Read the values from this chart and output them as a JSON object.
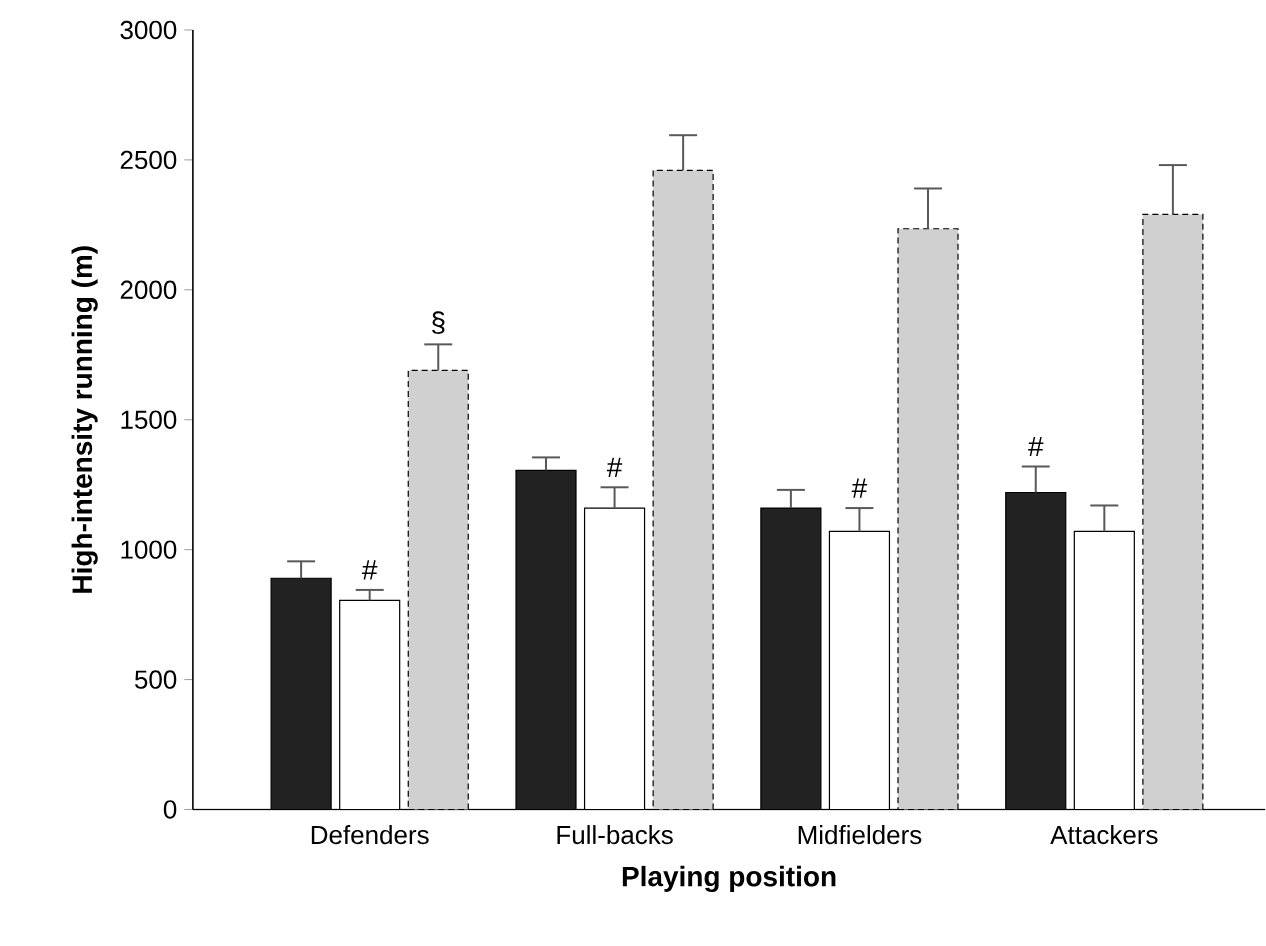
{
  "chart_data": {
    "type": "bar",
    "xlabel": "Playing position",
    "ylabel": "High-intensity running (m)",
    "categories": [
      "Defenders",
      "Full-backs",
      "Midfielders",
      "Attackers"
    ],
    "series": [
      {
        "color": "#222222",
        "values": [
          890,
          1305,
          1160,
          1220
        ],
        "errors": [
          65,
          50,
          70,
          100
        ]
      },
      {
        "color": "#ffffff",
        "values": [
          805,
          1160,
          1070,
          1070
        ],
        "errors": [
          40,
          80,
          90,
          100
        ]
      },
      {
        "color": "#d0d0d0",
        "values": [
          1690,
          2460,
          2235,
          2290
        ],
        "errors": [
          100,
          135,
          155,
          190
        ]
      }
    ],
    "ylim": [
      0,
      3000
    ],
    "yticks": [
      0,
      500,
      1000,
      1500,
      2000,
      2500,
      3000
    ],
    "grid": false,
    "annotations": [
      "#",
      "§",
      "#",
      "#",
      "#"
    ]
  }
}
